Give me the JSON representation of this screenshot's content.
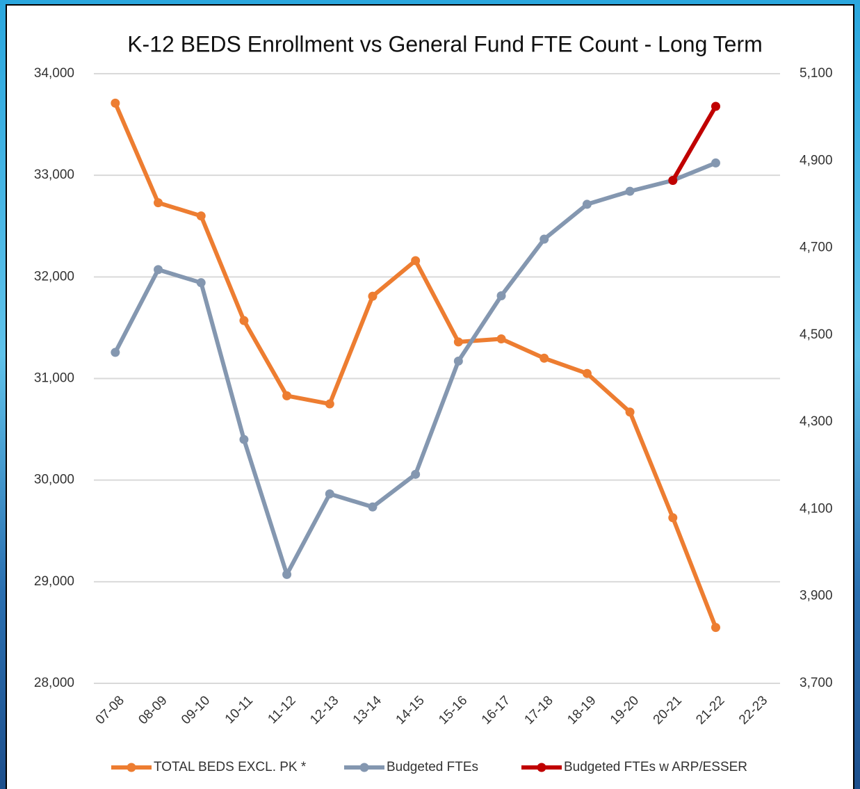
{
  "chart_data": {
    "type": "line",
    "title": "K-12 BEDS Enrollment vs General Fund FTE Count - Long Term",
    "categories": [
      "07-08",
      "08-09",
      "09-10",
      "10-11",
      "11-12",
      "12-13",
      "13-14",
      "14-15",
      "15-16",
      "16-17",
      "17-18",
      "18-19",
      "19-20",
      "20-21",
      "21-22",
      "22-23"
    ],
    "series": [
      {
        "name": "TOTAL BEDS EXCL. PK *",
        "color": "#ED7D31",
        "axis": "y",
        "values": [
          33710,
          32730,
          32600,
          31570,
          30830,
          30750,
          31810,
          32160,
          31360,
          31390,
          31200,
          31050,
          30670,
          29630,
          28550,
          null
        ]
      },
      {
        "name": "Budgeted FTEs",
        "color": "#8497B0",
        "axis": "y2",
        "values": [
          4460,
          4650,
          4620,
          4260,
          3950,
          4135,
          4105,
          4180,
          4440,
          4590,
          4720,
          4800,
          4830,
          4855,
          4895,
          null
        ]
      },
      {
        "name": "Budgeted FTEs w ARP/ESSER",
        "color": "#C00000",
        "axis": "y2",
        "values": [
          null,
          null,
          null,
          null,
          null,
          null,
          null,
          null,
          null,
          null,
          null,
          null,
          null,
          4855,
          5025,
          null
        ]
      }
    ],
    "ylim": [
      28000,
      34000
    ],
    "yticks": [
      {
        "value": 28000,
        "label": "28,000"
      },
      {
        "value": 29000,
        "label": "29,000"
      },
      {
        "value": 30000,
        "label": "30,000"
      },
      {
        "value": 31000,
        "label": "31,000"
      },
      {
        "value": 32000,
        "label": "32,000"
      },
      {
        "value": 33000,
        "label": "33,000"
      },
      {
        "value": 34000,
        "label": "34,000"
      }
    ],
    "y2lim": [
      3700,
      5100
    ],
    "y2ticks": [
      {
        "value": 3700,
        "label": "3,700"
      },
      {
        "value": 3900,
        "label": "3,900"
      },
      {
        "value": 4100,
        "label": "4,100"
      },
      {
        "value": 4300,
        "label": "4,300"
      },
      {
        "value": 4500,
        "label": "4,500"
      },
      {
        "value": 4700,
        "label": "4,700"
      },
      {
        "value": 4900,
        "label": "4,900"
      },
      {
        "value": 5100,
        "label": "5,100"
      }
    ],
    "grid": true,
    "legend": "bottom"
  }
}
